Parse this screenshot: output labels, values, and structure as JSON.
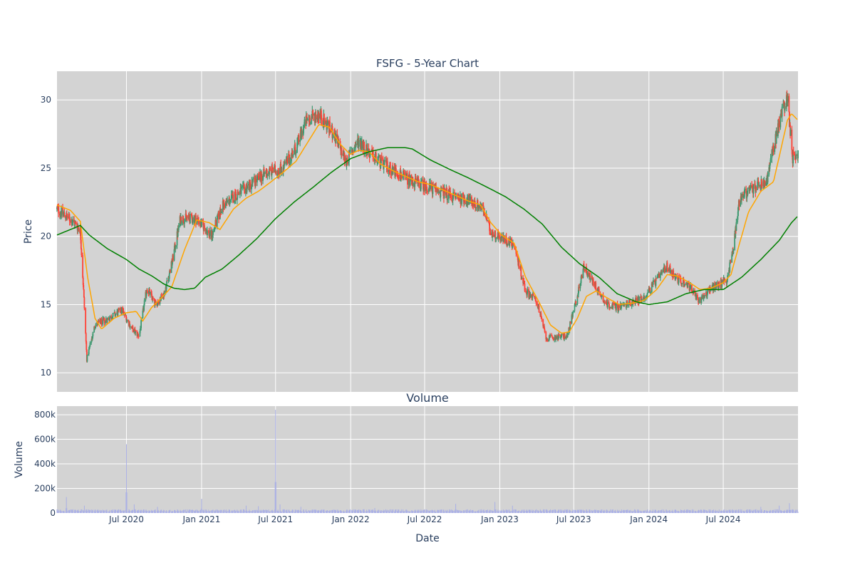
{
  "chart_data": [
    {
      "type": "candlestick",
      "title": "FSFG - 5-Year Chart",
      "ylabel": "Price",
      "ylim": [
        8.6,
        32.1
      ],
      "yticks": [
        10,
        15,
        20,
        25,
        30
      ],
      "x_range": [
        "2020-01-13",
        "2024-12-31"
      ],
      "xticks": [
        {
          "date": "2020-07-01",
          "label": "Jul 2020"
        },
        {
          "date": "2021-01-01",
          "label": "Jan 2021"
        },
        {
          "date": "2021-07-01",
          "label": "Jul 2021"
        },
        {
          "date": "2022-01-01",
          "label": "Jan 2022"
        },
        {
          "date": "2022-07-01",
          "label": "Jul 2022"
        },
        {
          "date": "2023-01-01",
          "label": "Jan 2023"
        },
        {
          "date": "2023-07-01",
          "label": "Jul 2023"
        },
        {
          "date": "2024-01-01",
          "label": "Jan 2024"
        },
        {
          "date": "2024-07-01",
          "label": "Jul 2024"
        }
      ],
      "grid": true,
      "legend": "none",
      "price_path": [
        [
          "2020-01-13",
          22.0
        ],
        [
          "2020-02-20",
          21.1
        ],
        [
          "2020-03-10",
          20.5
        ],
        [
          "2020-03-18",
          16.0
        ],
        [
          "2020-03-26",
          11.0
        ],
        [
          "2020-04-15",
          13.5
        ],
        [
          "2020-05-20",
          14.0
        ],
        [
          "2020-06-20",
          14.6
        ],
        [
          "2020-07-15",
          13.2
        ],
        [
          "2020-08-01",
          12.7
        ],
        [
          "2020-08-20",
          16.2
        ],
        [
          "2020-09-10",
          15.0
        ],
        [
          "2020-10-01",
          15.8
        ],
        [
          "2020-10-20",
          18.0
        ],
        [
          "2020-11-10",
          21.3
        ],
        [
          "2020-12-20",
          21.3
        ],
        [
          "2021-01-25",
          20.0
        ],
        [
          "2021-02-20",
          22.2
        ],
        [
          "2021-03-25",
          23.0
        ],
        [
          "2021-05-01",
          23.8
        ],
        [
          "2021-06-10",
          24.7
        ],
        [
          "2021-07-20",
          25.0
        ],
        [
          "2021-08-20",
          26.5
        ],
        [
          "2021-09-15",
          28.5
        ],
        [
          "2021-10-15",
          29.0
        ],
        [
          "2021-11-20",
          27.5
        ],
        [
          "2021-12-20",
          25.5
        ],
        [
          "2022-01-20",
          27.0
        ],
        [
          "2022-02-20",
          26.0
        ],
        [
          "2022-03-20",
          25.3
        ],
        [
          "2022-04-20",
          24.8
        ],
        [
          "2022-05-20",
          24.2
        ],
        [
          "2022-06-20",
          23.8
        ],
        [
          "2022-07-20",
          23.5
        ],
        [
          "2022-09-01",
          23.0
        ],
        [
          "2022-10-10",
          22.7
        ],
        [
          "2022-11-20",
          22.1
        ],
        [
          "2022-12-10",
          20.3
        ],
        [
          "2023-01-10",
          19.8
        ],
        [
          "2023-02-05",
          19.4
        ],
        [
          "2023-03-05",
          16.0
        ],
        [
          "2023-04-01",
          15.3
        ],
        [
          "2023-04-25",
          12.5
        ],
        [
          "2023-05-15",
          12.6
        ],
        [
          "2023-06-15",
          12.7
        ],
        [
          "2023-07-10",
          15.6
        ],
        [
          "2023-07-25",
          17.8
        ],
        [
          "2023-08-20",
          16.5
        ],
        [
          "2023-09-20",
          15.0
        ],
        [
          "2023-10-20",
          14.8
        ],
        [
          "2023-11-20",
          15.2
        ],
        [
          "2023-12-20",
          15.5
        ],
        [
          "2024-01-20",
          16.8
        ],
        [
          "2024-02-15",
          17.8
        ],
        [
          "2024-03-10",
          16.9
        ],
        [
          "2024-04-10",
          16.3
        ],
        [
          "2024-05-01",
          15.2
        ],
        [
          "2024-06-01",
          16.2
        ],
        [
          "2024-07-10",
          16.8
        ],
        [
          "2024-07-25",
          19.0
        ],
        [
          "2024-08-10",
          22.8
        ],
        [
          "2024-09-01",
          23.3
        ],
        [
          "2024-10-15",
          24.0
        ],
        [
          "2024-11-01",
          26.5
        ],
        [
          "2024-11-25",
          29.5
        ],
        [
          "2024-12-05",
          30.2
        ],
        [
          "2024-12-18",
          25.8
        ],
        [
          "2024-12-31",
          26.0
        ]
      ],
      "series": [
        {
          "name": "",
          "color": "#ffa500",
          "values": [
            [
              "2020-01-13",
              22.3
            ],
            [
              "2020-02-15",
              21.9
            ],
            [
              "2020-03-10",
              21.1
            ],
            [
              "2020-03-28",
              17.0
            ],
            [
              "2020-04-15",
              14.0
            ],
            [
              "2020-05-01",
              13.2
            ],
            [
              "2020-06-01",
              14.0
            ],
            [
              "2020-07-01",
              14.4
            ],
            [
              "2020-07-25",
              14.5
            ],
            [
              "2020-08-10",
              13.8
            ],
            [
              "2020-09-01",
              14.8
            ],
            [
              "2020-09-25",
              15.5
            ],
            [
              "2020-10-20",
              16.3
            ],
            [
              "2020-11-20",
              19.0
            ],
            [
              "2020-12-20",
              21.2
            ],
            [
              "2021-01-20",
              21.0
            ],
            [
              "2021-02-15",
              20.5
            ],
            [
              "2021-03-20",
              22.0
            ],
            [
              "2021-04-20",
              22.8
            ],
            [
              "2021-05-20",
              23.3
            ],
            [
              "2021-06-20",
              24.0
            ],
            [
              "2021-07-20",
              24.7
            ],
            [
              "2021-08-20",
              25.5
            ],
            [
              "2021-09-20",
              27.0
            ],
            [
              "2021-10-15",
              28.2
            ],
            [
              "2021-11-10",
              28.0
            ],
            [
              "2021-12-05",
              26.8
            ],
            [
              "2021-12-31",
              26.0
            ],
            [
              "2022-01-20",
              26.3
            ],
            [
              "2022-02-15",
              26.2
            ],
            [
              "2022-03-15",
              25.3
            ],
            [
              "2022-04-15",
              24.8
            ],
            [
              "2022-05-15",
              24.4
            ],
            [
              "2022-06-15",
              24.0
            ],
            [
              "2022-07-15",
              23.8
            ],
            [
              "2022-08-15",
              23.4
            ],
            [
              "2022-09-15",
              23.0
            ],
            [
              "2022-10-15",
              22.6
            ],
            [
              "2022-11-15",
              22.3
            ],
            [
              "2022-12-10",
              21.0
            ],
            [
              "2023-01-05",
              20.1
            ],
            [
              "2023-02-05",
              19.5
            ],
            [
              "2023-03-05",
              17.0
            ],
            [
              "2023-04-05",
              15.3
            ],
            [
              "2023-05-05",
              13.5
            ],
            [
              "2023-06-01",
              12.9
            ],
            [
              "2023-06-20",
              13.0
            ],
            [
              "2023-07-10",
              14.0
            ],
            [
              "2023-08-01",
              15.6
            ],
            [
              "2023-08-25",
              16.0
            ],
            [
              "2023-09-20",
              15.5
            ],
            [
              "2023-10-20",
              15.0
            ],
            [
              "2023-11-20",
              15.1
            ],
            [
              "2023-12-20",
              15.3
            ],
            [
              "2024-01-20",
              16.1
            ],
            [
              "2024-02-15",
              17.2
            ],
            [
              "2024-03-10",
              17.1
            ],
            [
              "2024-04-10",
              16.6
            ],
            [
              "2024-05-05",
              16.1
            ],
            [
              "2024-06-01",
              16.2
            ],
            [
              "2024-07-01",
              16.6
            ],
            [
              "2024-07-20",
              17.2
            ],
            [
              "2024-08-10",
              19.5
            ],
            [
              "2024-09-01",
              21.8
            ],
            [
              "2024-10-01",
              23.3
            ],
            [
              "2024-11-01",
              24.0
            ],
            [
              "2024-11-20",
              26.5
            ],
            [
              "2024-12-05",
              28.5
            ],
            [
              "2024-12-15",
              29.0
            ],
            [
              "2024-12-31",
              28.5
            ]
          ]
        },
        {
          "name": "",
          "color": "#008000",
          "values": [
            [
              "2020-01-13",
              20.1
            ],
            [
              "2020-02-15",
              20.5
            ],
            [
              "2020-03-10",
              20.8
            ],
            [
              "2020-04-01",
              20.1
            ],
            [
              "2020-05-15",
              19.1
            ],
            [
              "2020-07-01",
              18.3
            ],
            [
              "2020-08-01",
              17.6
            ],
            [
              "2020-09-01",
              17.1
            ],
            [
              "2020-10-01",
              16.5
            ],
            [
              "2020-10-25",
              16.2
            ],
            [
              "2020-11-20",
              16.1
            ],
            [
              "2020-12-15",
              16.2
            ],
            [
              "2021-01-10",
              17.0
            ],
            [
              "2021-02-20",
              17.6
            ],
            [
              "2021-04-01",
              18.6
            ],
            [
              "2021-05-15",
              19.8
            ],
            [
              "2021-07-01",
              21.3
            ],
            [
              "2021-08-15",
              22.5
            ],
            [
              "2021-10-01",
              23.6
            ],
            [
              "2021-11-15",
              24.7
            ],
            [
              "2022-01-01",
              25.7
            ],
            [
              "2022-02-15",
              26.2
            ],
            [
              "2022-04-01",
              26.5
            ],
            [
              "2022-05-15",
              26.5
            ],
            [
              "2022-06-01",
              26.4
            ],
            [
              "2022-07-15",
              25.6
            ],
            [
              "2022-09-01",
              24.9
            ],
            [
              "2022-10-15",
              24.3
            ],
            [
              "2022-12-01",
              23.6
            ],
            [
              "2023-01-15",
              22.9
            ],
            [
              "2023-03-01",
              22.0
            ],
            [
              "2023-04-15",
              20.9
            ],
            [
              "2023-06-01",
              19.2
            ],
            [
              "2023-07-15",
              18.0
            ],
            [
              "2023-09-01",
              17.0
            ],
            [
              "2023-10-15",
              15.8
            ],
            [
              "2023-12-01",
              15.2
            ],
            [
              "2024-01-01",
              15.0
            ],
            [
              "2024-02-15",
              15.2
            ],
            [
              "2024-04-01",
              15.8
            ],
            [
              "2024-05-15",
              16.1
            ],
            [
              "2024-07-01",
              16.1
            ],
            [
              "2024-08-15",
              17.0
            ],
            [
              "2024-10-01",
              18.3
            ],
            [
              "2024-11-15",
              19.7
            ],
            [
              "2024-12-15",
              21.0
            ],
            [
              "2024-12-31",
              21.5
            ]
          ]
        }
      ]
    },
    {
      "type": "bar",
      "title": "Volume",
      "ylabel": "Volume",
      "xlabel": "Date",
      "ylim": [
        0,
        870000
      ],
      "yticks": [
        {
          "v": 0,
          "label": "0"
        },
        {
          "v": 200000,
          "label": "200k"
        },
        {
          "v": 400000,
          "label": "400k"
        },
        {
          "v": 600000,
          "label": "600k"
        },
        {
          "v": 800000,
          "label": "800k"
        }
      ],
      "base_level": 20000,
      "spikes": [
        [
          "2020-02-05",
          130000
        ],
        [
          "2020-03-20",
          60000
        ],
        [
          "2020-07-01",
          560000
        ],
        [
          "2020-07-20",
          70000
        ],
        [
          "2020-08-15",
          60000
        ],
        [
          "2020-09-15",
          50000
        ],
        [
          "2021-01-01",
          115000
        ],
        [
          "2021-04-20",
          60000
        ],
        [
          "2021-05-20",
          55000
        ],
        [
          "2021-06-20",
          60000
        ],
        [
          "2021-07-01",
          840000
        ],
        [
          "2021-07-12",
          70000
        ],
        [
          "2021-08-01",
          65000
        ],
        [
          "2021-09-01",
          50000
        ],
        [
          "2022-03-01",
          40000
        ],
        [
          "2022-09-15",
          75000
        ],
        [
          "2022-10-15",
          60000
        ],
        [
          "2022-12-20",
          90000
        ],
        [
          "2023-02-01",
          60000
        ],
        [
          "2023-07-01",
          60000
        ],
        [
          "2024-10-01",
          50000
        ],
        [
          "2024-11-15",
          60000
        ],
        [
          "2024-12-10",
          80000
        ]
      ]
    }
  ]
}
